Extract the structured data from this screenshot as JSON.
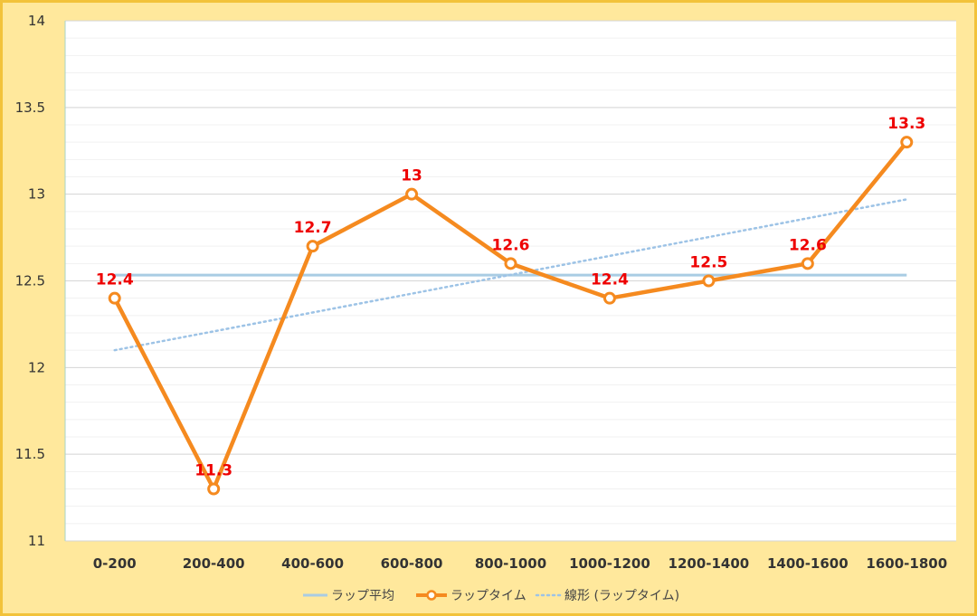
{
  "chart_data": {
    "type": "line",
    "categories": [
      "0-200",
      "200-400",
      "400-600",
      "600-800",
      "800-1000",
      "1000-1200",
      "1200-1400",
      "1400-1600",
      "1600-1800"
    ],
    "series": [
      {
        "name": "ラップ平均",
        "style": "line",
        "color": "#a9cce3",
        "values": [
          12.533,
          12.533,
          12.533,
          12.533,
          12.533,
          12.533,
          12.533,
          12.533,
          12.533
        ]
      },
      {
        "name": "ラップタイム",
        "style": "line-marker",
        "color": "#f58a1f",
        "values": [
          12.4,
          11.3,
          12.7,
          13,
          12.6,
          12.4,
          12.5,
          12.6,
          13.3
        ],
        "labels": [
          "12.4",
          "11.3",
          "12.7",
          "13",
          "12.6",
          "12.4",
          "12.5",
          "12.6",
          "13.3"
        ]
      },
      {
        "name": "線形 (ラップタイム)",
        "style": "dotted",
        "color": "#9dc3e6",
        "values": [
          12.1,
          12.21,
          12.32,
          12.43,
          12.53,
          12.64,
          12.75,
          12.86,
          12.97
        ]
      }
    ],
    "ylim": [
      11,
      14
    ],
    "yticks": [
      "11",
      "11.5",
      "12",
      "12.5",
      "13",
      "13.5",
      "14"
    ],
    "ytick_values": [
      11,
      11.5,
      12,
      12.5,
      13,
      13.5,
      14
    ],
    "grid": true,
    "legend_position": "bottom",
    "label_color": "#ee0000"
  }
}
